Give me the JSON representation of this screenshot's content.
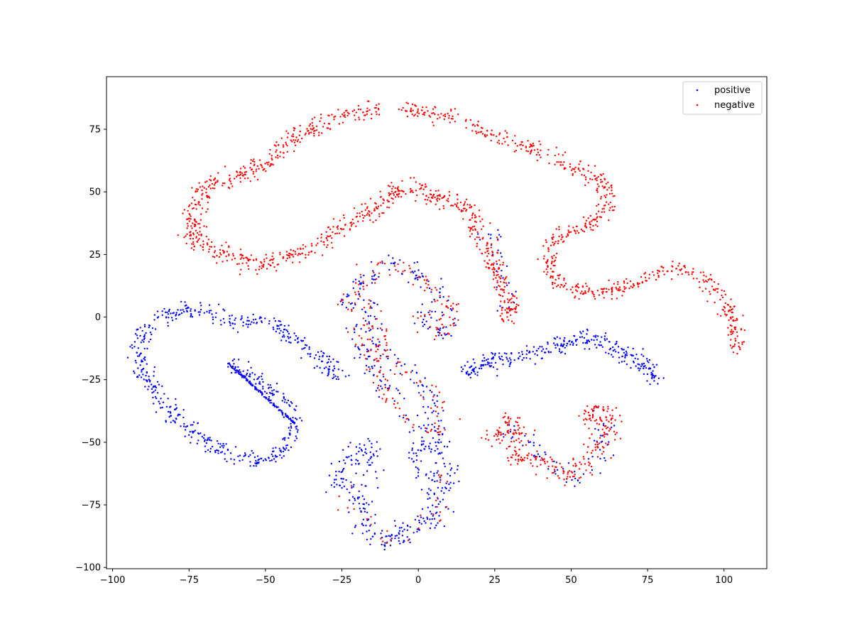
{
  "chart_data": {
    "type": "scatter",
    "title": "",
    "xlabel": "",
    "ylabel": "",
    "xlim": [
      -102,
      114
    ],
    "ylim": [
      -100.5,
      96
    ],
    "grid": false,
    "legend_position": "top-right",
    "x_ticks": [
      -100,
      -75,
      -50,
      -25,
      0,
      25,
      50,
      75,
      100
    ],
    "y_ticks": [
      -100,
      -75,
      -50,
      -25,
      0,
      25,
      50,
      75
    ],
    "x_tick_labels": [
      "−100",
      "−75",
      "−50",
      "−25",
      "0",
      "25",
      "50",
      "75",
      "100"
    ],
    "y_tick_labels": [
      "−100",
      "−75",
      "−50",
      "−25",
      "0",
      "25",
      "50",
      "75"
    ],
    "series": [
      {
        "name": "positive",
        "color": "#0000ff",
        "marker": "point",
        "cluster_paths": [
          {
            "points": [
              [
                -26,
                -25
              ],
              [
                -28,
                -19
              ],
              [
                -33,
                -16
              ],
              [
                -40,
                -10
              ],
              [
                -45,
                -4
              ],
              [
                -52,
                -1
              ],
              [
                -60,
                -3
              ],
              [
                -66,
                1
              ],
              [
                -72,
                3
              ],
              [
                -78,
                2
              ],
              [
                -84,
                0
              ],
              [
                -88,
                -3
              ],
              [
                -91,
                -9
              ],
              [
                -91,
                -18
              ],
              [
                -89,
                -26
              ],
              [
                -84,
                -33
              ],
              [
                -79,
                -40
              ],
              [
                -73,
                -47
              ],
              [
                -66,
                -52
              ],
              [
                -58,
                -57
              ],
              [
                -50,
                -57
              ],
              [
                -44,
                -53
              ],
              [
                -41,
                -47
              ],
              [
                -40,
                -40
              ],
              [
                -43,
                -35
              ],
              [
                -48,
                -29
              ],
              [
                -55,
                -24
              ],
              [
                -62,
                -19
              ]
            ],
            "count": 620,
            "spread": 1.8
          },
          {
            "points": [
              [
                14,
                -22
              ],
              [
                20,
                -18
              ],
              [
                28,
                -17
              ],
              [
                36,
                -15
              ],
              [
                44,
                -13
              ],
              [
                52,
                -8
              ],
              [
                58,
                -9
              ],
              [
                64,
                -12
              ],
              [
                70,
                -16
              ],
              [
                76,
                -20
              ],
              [
                78,
                -26
              ]
            ],
            "count": 300,
            "spread": 1.9
          },
          {
            "points": [
              [
                -26,
                -70
              ],
              [
                -25,
                -58
              ],
              [
                -19,
                -51
              ],
              [
                -14,
                -53
              ],
              [
                -19,
                -62
              ],
              [
                -20,
                -75
              ],
              [
                -16,
                -85
              ],
              [
                -9,
                -89
              ],
              [
                -1,
                -84
              ],
              [
                7,
                -78
              ],
              [
                10,
                -68
              ],
              [
                9,
                -55
              ],
              [
                3,
                -49
              ],
              [
                -1,
                -55
              ],
              [
                4,
                -65
              ],
              [
                4,
                -72
              ]
            ],
            "count": 330,
            "spread": 2.4
          },
          {
            "points": [
              [
                -24,
                3
              ],
              [
                -20,
                12
              ],
              [
                -15,
                18
              ],
              [
                -9,
                22
              ],
              [
                -4,
                20
              ],
              [
                1,
                16
              ],
              [
                4,
                10
              ],
              [
                8,
                6
              ],
              [
                11,
                5
              ],
              [
                10,
                -5
              ],
              [
                6,
                -8
              ],
              [
                4,
                -2
              ],
              [
                2,
                3
              ]
            ],
            "count": 120,
            "spread": 2.3
          },
          {
            "points": [
              [
                -22,
                -3
              ],
              [
                -17,
                -10
              ],
              [
                -16,
                -18
              ],
              [
                -13,
                -23
              ],
              [
                -11,
                -29
              ],
              [
                -8,
                -33
              ],
              [
                -5,
                -37
              ],
              [
                -2,
                -42
              ],
              [
                3,
                -44
              ],
              [
                8,
                -46
              ],
              [
                5,
                -34
              ],
              [
                0,
                -26
              ],
              [
                -6,
                -20
              ],
              [
                -12,
                -13
              ],
              [
                -14,
                -6
              ],
              [
                -16,
                1
              ],
              [
                -17,
                7
              ]
            ],
            "count": 150,
            "spread": 2.1
          },
          {
            "points": [
              [
                28,
                -45
              ],
              [
                36,
                -50
              ],
              [
                42,
                -58
              ],
              [
                48,
                -64
              ],
              [
                52,
                -67
              ],
              [
                57,
                -60
              ],
              [
                60,
                -50
              ],
              [
                62,
                -42
              ],
              [
                58,
                -35
              ]
            ],
            "count": 70,
            "spread": 2.3
          },
          {
            "points": [
              [
                20,
                30
              ],
              [
                24,
                33
              ],
              [
                27,
                35
              ],
              [
                24,
                25
              ],
              [
                27,
                18
              ],
              [
                30,
                8
              ],
              [
                26,
                2
              ],
              [
                30,
                5
              ]
            ],
            "count": 30,
            "spread": 2.2
          }
        ],
        "line_segment": {
          "x": [
            -62,
            -40
          ],
          "y": [
            -18.5,
            -43
          ],
          "count": 130
        }
      },
      {
        "name": "negative",
        "color": "#ff0000",
        "marker": "point",
        "cluster_paths": [
          {
            "points": [
              [
                -5,
                84
              ],
              [
                0,
                82
              ],
              [
                8,
                80
              ],
              [
                16,
                77
              ],
              [
                24,
                73
              ],
              [
                32,
                70
              ],
              [
                40,
                66
              ],
              [
                48,
                61
              ],
              [
                55,
                58
              ],
              [
                61,
                53
              ],
              [
                62,
                45
              ],
              [
                60,
                40
              ],
              [
                53,
                36
              ],
              [
                46,
                32
              ],
              [
                42,
                25
              ],
              [
                43,
                17
              ],
              [
                48,
                12
              ],
              [
                56,
                10
              ],
              [
                65,
                11
              ],
              [
                72,
                14
              ],
              [
                79,
                18
              ],
              [
                86,
                19
              ],
              [
                93,
                16
              ],
              [
                98,
                10
              ],
              [
                102,
                2
              ],
              [
                104,
                -6
              ],
              [
                104,
                -14
              ]
            ],
            "count": 650,
            "spread": 1.6
          },
          {
            "points": [
              [
                -13,
                83
              ],
              [
                -18,
                82
              ],
              [
                -25,
                80
              ],
              [
                -30,
                78
              ],
              [
                -35,
                75
              ],
              [
                -40,
                72
              ],
              [
                -45,
                68
              ],
              [
                -50,
                62
              ],
              [
                -56,
                57
              ],
              [
                -62,
                55
              ],
              [
                -69,
                52
              ],
              [
                -73,
                47
              ],
              [
                -72,
                40
              ],
              [
                -75,
                35
              ],
              [
                -71,
                28
              ],
              [
                -64,
                26
              ],
              [
                -57,
                23
              ],
              [
                -49,
                21
              ],
              [
                -42,
                24
              ],
              [
                -35,
                28
              ],
              [
                -28,
                33
              ],
              [
                -22,
                38
              ],
              [
                -16,
                42
              ],
              [
                -11,
                47
              ],
              [
                -6,
                52
              ],
              [
                -1,
                51
              ],
              [
                5,
                48
              ],
              [
                10,
                46
              ],
              [
                15,
                46
              ],
              [
                17,
                40
              ],
              [
                20,
                33
              ],
              [
                24,
                24
              ],
              [
                26,
                16
              ],
              [
                29,
                8
              ],
              [
                31,
                3
              ],
              [
                27,
                -1
              ]
            ],
            "count": 900,
            "spread": 1.9
          },
          {
            "points": [
              [
                -24,
                3
              ],
              [
                -20,
                12
              ],
              [
                -15,
                18
              ],
              [
                -9,
                22
              ],
              [
                -4,
                20
              ],
              [
                1,
                16
              ],
              [
                4,
                10
              ],
              [
                8,
                6
              ],
              [
                11,
                5
              ],
              [
                10,
                -5
              ],
              [
                6,
                -8
              ],
              [
                4,
                -2
              ],
              [
                2,
                3
              ]
            ],
            "count": 100,
            "spread": 2.3
          },
          {
            "points": [
              [
                -22,
                -3
              ],
              [
                -17,
                -10
              ],
              [
                -16,
                -18
              ],
              [
                -13,
                -23
              ],
              [
                -11,
                -29
              ],
              [
                -8,
                -33
              ],
              [
                -5,
                -37
              ],
              [
                -2,
                -42
              ],
              [
                3,
                -44
              ],
              [
                8,
                -46
              ],
              [
                5,
                -34
              ],
              [
                0,
                -26
              ],
              [
                -6,
                -20
              ],
              [
                -12,
                -13
              ],
              [
                -14,
                -6
              ],
              [
                -16,
                1
              ],
              [
                -17,
                7
              ]
            ],
            "count": 120,
            "spread": 2.1
          },
          {
            "points": [
              [
                25,
                -52
              ],
              [
                26,
                -44
              ],
              [
                31,
                -40
              ],
              [
                34,
                -47
              ],
              [
                30,
                -55
              ],
              [
                33,
                -58
              ],
              [
                38,
                -56
              ],
              [
                44,
                -61
              ],
              [
                50,
                -63
              ],
              [
                54,
                -58
              ],
              [
                58,
                -52
              ],
              [
                62,
                -45
              ],
              [
                64,
                -39
              ],
              [
                58,
                -36
              ],
              [
                55,
                -44
              ]
            ],
            "count": 280,
            "spread": 2.3
          },
          {
            "points": [
              [
                -26,
                -70
              ],
              [
                -20,
                -77
              ],
              [
                -14,
                -86
              ],
              [
                -9,
                -90
              ],
              [
                -1,
                -85
              ],
              [
                7,
                -77
              ],
              [
                9,
                -60
              ]
            ],
            "count": 30,
            "spread": 2.2
          }
        ]
      }
    ]
  },
  "legend": {
    "items": [
      {
        "label": "positive",
        "color": "#0000ff"
      },
      {
        "label": "negative",
        "color": "#ff0000"
      }
    ]
  }
}
